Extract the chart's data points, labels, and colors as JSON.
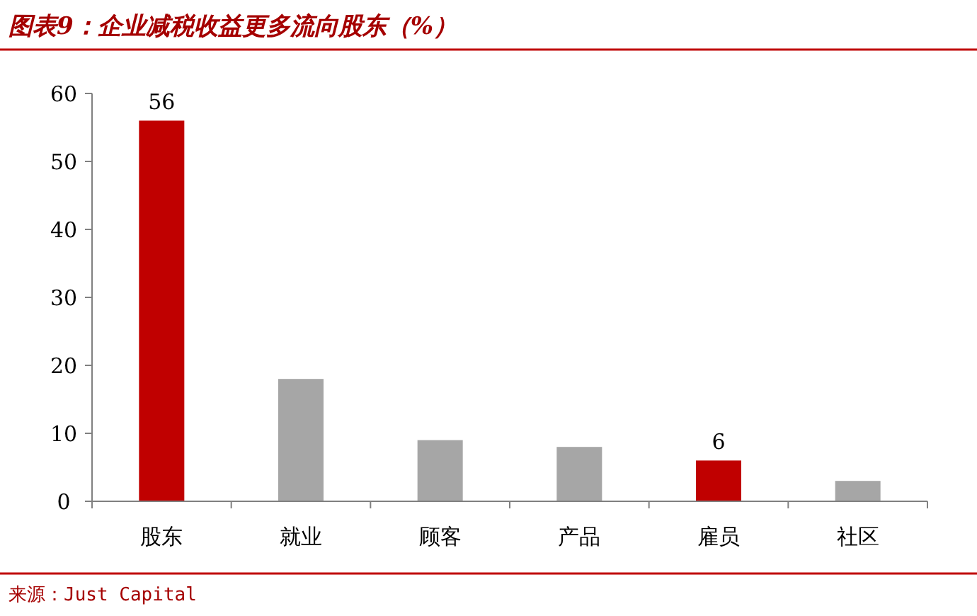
{
  "chart_data": {
    "type": "bar",
    "title": "图表9：企业减税收益更多流向股东（%）",
    "categories": [
      "股东",
      "就业",
      "顾客",
      "产品",
      "雇员",
      "社区"
    ],
    "values": [
      56,
      18,
      9,
      8,
      6,
      3
    ],
    "colors": [
      "#c00000",
      "#a6a6a6",
      "#a6a6a6",
      "#a6a6a6",
      "#c00000",
      "#a6a6a6"
    ],
    "value_labels": [
      "56",
      null,
      null,
      null,
      "6",
      null
    ],
    "ylim": [
      0,
      60
    ],
    "yticks": [
      0,
      10,
      20,
      30,
      40,
      50,
      60
    ],
    "grid": false,
    "annotations": [
      "来源：Just Capital"
    ]
  }
}
